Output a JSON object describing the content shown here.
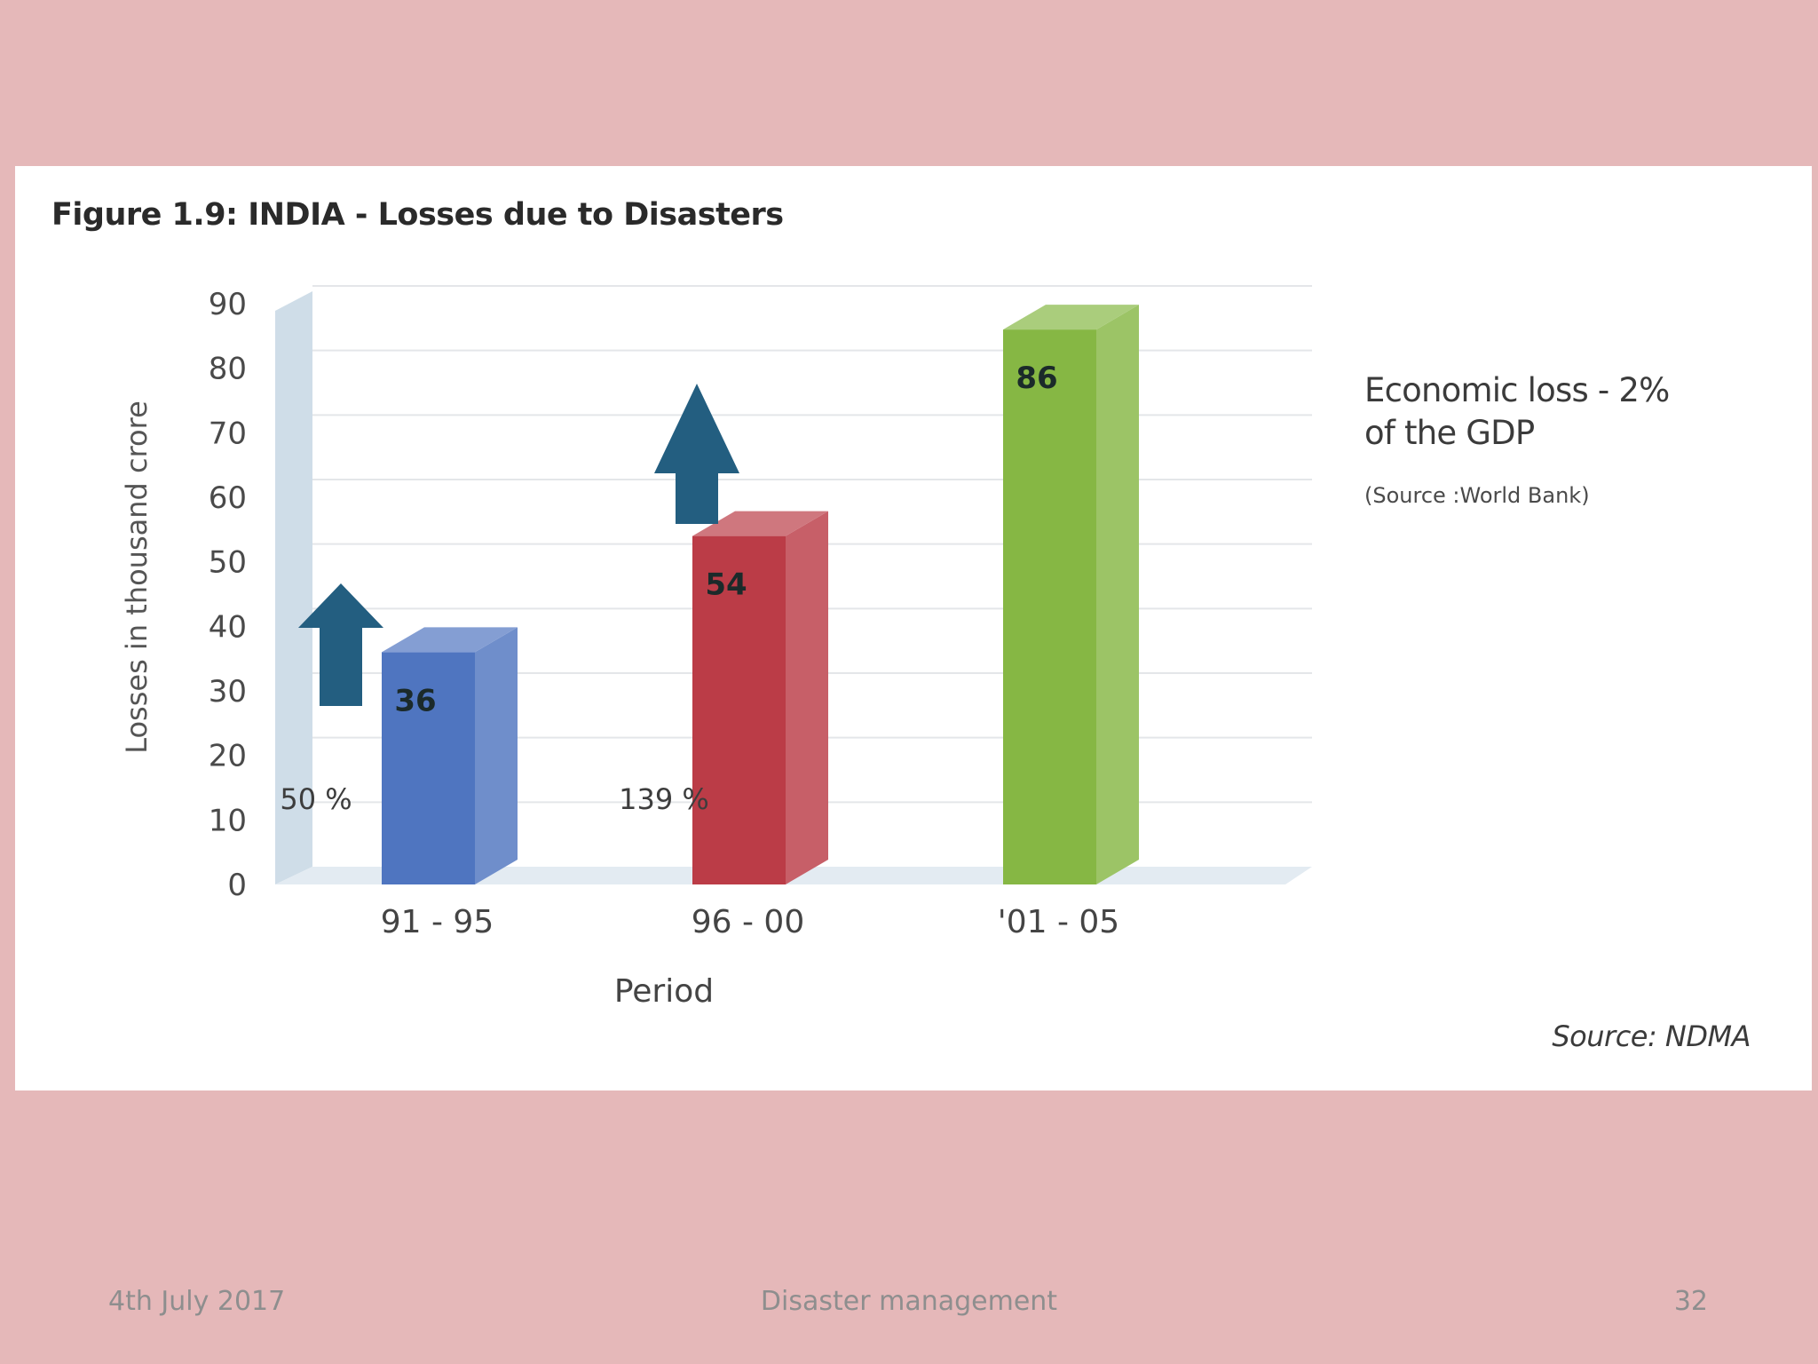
{
  "slide": {
    "footer_date": "4th July 2017",
    "footer_title": "Disaster management",
    "footer_page": "32"
  },
  "figure": {
    "title": "Figure 1.9:  INDIA - Losses due to Disasters",
    "note_line1": "Economic loss - 2%",
    "note_line2": "of the GDP",
    "note_source": "(Source :World Bank)",
    "chart_source": "Source: NDMA"
  },
  "colors": {
    "background": "#e5b8b9",
    "bar_91_95": "#4f75c0",
    "bar_96_00": "#bb3c47",
    "bar_01_05": "#86b744",
    "arrow": "#235e80"
  },
  "chart_data": {
    "type": "bar",
    "title": "Figure 1.9:  INDIA - Losses due to Disasters",
    "xlabel": "Period",
    "ylabel": "Losses in thousand crore",
    "categories": [
      "91 - 95",
      "96 - 00",
      "'01 - 05"
    ],
    "values": [
      36,
      54,
      86
    ],
    "data_labels": [
      "36",
      "54",
      "86"
    ],
    "ylim": [
      0,
      90
    ],
    "yticks": [
      0,
      10,
      20,
      30,
      40,
      50,
      60,
      70,
      80,
      90
    ],
    "grid": true,
    "growth_annotations": [
      "50 %",
      "139 %"
    ]
  }
}
